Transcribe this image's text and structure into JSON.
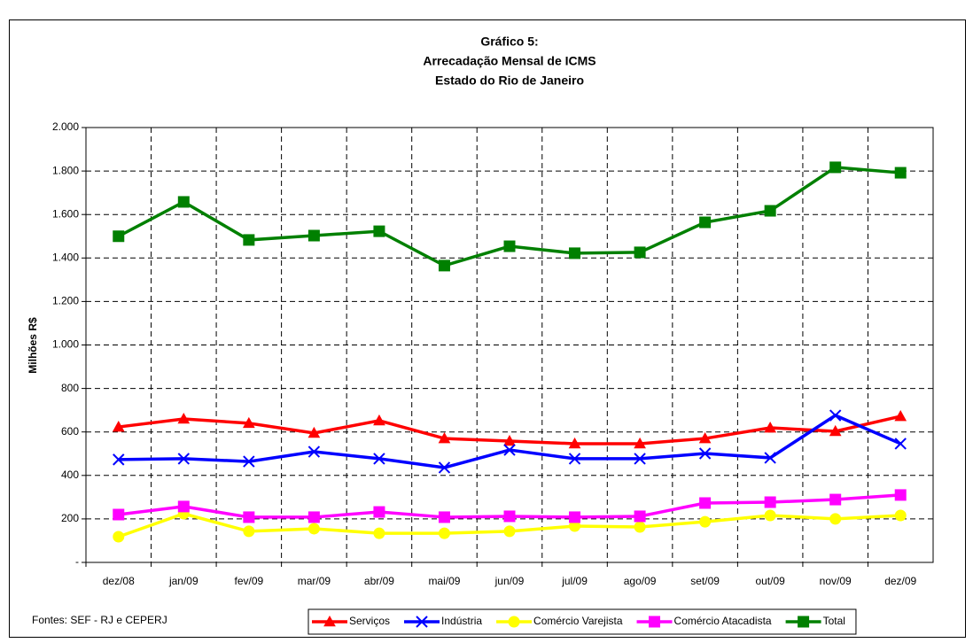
{
  "chart_data": {
    "type": "line",
    "title": [
      "Gráfico 5:",
      "Arrecadação Mensal de ICMS",
      "Estado do Rio de Janeiro"
    ],
    "y_label": "Milhões R$",
    "footnote": "Fontes: SEF - RJ e CEPERJ",
    "categories": [
      "dez/08",
      "jan/09",
      "fev/09",
      "mar/09",
      "abr/09",
      "mai/09",
      "jun/09",
      "jul/09",
      "ago/09",
      "set/09",
      "out/09",
      "nov/09",
      "dez/09"
    ],
    "ylim": [
      0,
      2000
    ],
    "yticks": [
      {
        "value": 0,
        "label": "-"
      },
      200,
      400,
      600,
      800,
      {
        "value": 1000,
        "label": "1.000"
      },
      {
        "value": 1200,
        "label": "1.200"
      },
      {
        "value": 1400,
        "label": "1.400"
      },
      {
        "value": 1600,
        "label": "1.600"
      },
      {
        "value": 1800,
        "label": "1.800"
      },
      {
        "value": 2000,
        "label": "2.000"
      }
    ],
    "grid": true,
    "legend": "bottom",
    "series": [
      {
        "name": "Serviços",
        "color": "#ff0000",
        "marker": "triangle",
        "values": [
          623,
          660,
          640,
          595,
          652,
          570,
          558,
          546,
          546,
          570,
          619,
          603,
          672
        ]
      },
      {
        "name": "Indústria",
        "color": "#0000ff",
        "marker": "x",
        "values": [
          473,
          477,
          464,
          509,
          477,
          436,
          517,
          477,
          477,
          501,
          481,
          676,
          546
        ]
      },
      {
        "name": "Comércio Varejista",
        "color": "#ffff00",
        "marker": "circle",
        "values": [
          118,
          224,
          143,
          155,
          134,
          134,
          143,
          167,
          163,
          187,
          216,
          200,
          216
        ]
      },
      {
        "name": "Comércio Atacadista",
        "color": "#ff00ff",
        "marker": "square",
        "values": [
          220,
          257,
          208,
          208,
          232,
          208,
          212,
          208,
          212,
          273,
          277,
          289,
          310
        ]
      },
      {
        "name": "Total",
        "color": "#008000",
        "marker": "square",
        "values": [
          1500,
          1658,
          1483,
          1503,
          1523,
          1365,
          1454,
          1422,
          1426,
          1564,
          1617,
          1817,
          1792
        ]
      }
    ]
  }
}
